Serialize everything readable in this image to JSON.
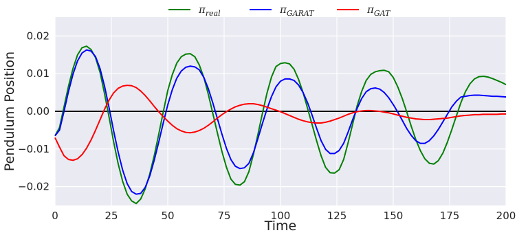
{
  "chart_data": {
    "type": "line",
    "xlabel": "Time",
    "ylabel": "Pendulum Position",
    "xlim": [
      0,
      200
    ],
    "ylim": [
      -0.025,
      0.025
    ],
    "x_ticks": [
      0,
      25,
      50,
      75,
      100,
      125,
      150,
      175,
      200
    ],
    "x_tick_labels": [
      "0",
      "25",
      "50",
      "75",
      "100",
      "125",
      "150",
      "175",
      "200"
    ],
    "y_ticks": [
      -0.02,
      -0.01,
      0.0,
      0.01,
      0.02
    ],
    "y_tick_labels": [
      "−0.02",
      "−0.01",
      "0.00",
      "0.01",
      "0.02"
    ],
    "grid": true,
    "legend_position": "top-center",
    "background_color": "#eaeaf2",
    "zero_line": {
      "y": 0.0,
      "color": "#000000"
    },
    "series": [
      {
        "name": "π",
        "subscript": "real",
        "color": "#008000",
        "x": [
          0,
          2,
          4,
          6,
          8,
          10,
          12,
          14,
          16,
          18,
          20,
          22,
          24,
          26,
          28,
          30,
          32,
          34,
          36,
          38,
          40,
          42,
          44,
          46,
          48,
          50,
          52,
          54,
          56,
          58,
          60,
          62,
          64,
          66,
          68,
          70,
          72,
          74,
          76,
          78,
          80,
          82,
          84,
          86,
          88,
          90,
          92,
          94,
          96,
          98,
          100,
          102,
          104,
          106,
          108,
          110,
          112,
          114,
          116,
          118,
          120,
          122,
          124,
          126,
          128,
          130,
          132,
          134,
          136,
          138,
          140,
          142,
          144,
          146,
          148,
          150,
          152,
          154,
          156,
          158,
          160,
          162,
          164,
          166,
          168,
          170,
          172,
          174,
          176,
          178,
          180,
          182,
          184,
          186,
          188,
          190,
          192,
          194,
          196,
          198,
          200
        ],
        "values": [
          -0.0065,
          -0.0043,
          0.0012,
          0.0067,
          0.0114,
          0.015,
          0.0169,
          0.0173,
          0.0164,
          0.0142,
          0.0103,
          0.0046,
          -0.0016,
          -0.0081,
          -0.0139,
          -0.0186,
          -0.022,
          -0.0238,
          -0.0245,
          -0.0233,
          -0.0206,
          -0.0167,
          -0.0118,
          -0.0061,
          -0.0002,
          0.0055,
          0.0097,
          0.0128,
          0.0145,
          0.0152,
          0.0153,
          0.0145,
          0.0123,
          0.009,
          0.0045,
          -0.0006,
          -0.0057,
          -0.0106,
          -0.0148,
          -0.018,
          -0.0194,
          -0.0196,
          -0.0187,
          -0.016,
          -0.0114,
          -0.0061,
          -0.0005,
          0.0048,
          0.0091,
          0.0119,
          0.0127,
          0.0129,
          0.0126,
          0.0112,
          0.0085,
          0.005,
          0.0008,
          -0.0035,
          -0.0078,
          -0.0118,
          -0.0149,
          -0.0163,
          -0.0164,
          -0.0155,
          -0.0128,
          -0.0083,
          -0.0034,
          0.0015,
          0.0053,
          0.0082,
          0.0098,
          0.0105,
          0.0108,
          0.0109,
          0.0105,
          0.009,
          0.0065,
          0.0034,
          -0.0002,
          -0.004,
          -0.0075,
          -0.0104,
          -0.0126,
          -0.0138,
          -0.014,
          -0.0131,
          -0.0111,
          -0.0082,
          -0.0048,
          -0.0012,
          0.0023,
          0.0052,
          0.0073,
          0.0086,
          0.0092,
          0.0093,
          0.0091,
          0.0087,
          0.0082,
          0.0077,
          0.0071
        ]
      },
      {
        "name": "π",
        "subscript": "GARAT",
        "color": "#0000ff",
        "x": [
          0,
          2,
          4,
          6,
          8,
          10,
          12,
          14,
          16,
          18,
          20,
          22,
          24,
          26,
          28,
          30,
          32,
          34,
          36,
          38,
          40,
          42,
          44,
          46,
          48,
          50,
          52,
          54,
          56,
          58,
          60,
          62,
          64,
          66,
          68,
          70,
          72,
          74,
          76,
          78,
          80,
          82,
          84,
          86,
          88,
          90,
          92,
          94,
          96,
          98,
          100,
          102,
          104,
          106,
          108,
          110,
          112,
          114,
          116,
          118,
          120,
          122,
          124,
          126,
          128,
          130,
          132,
          134,
          136,
          138,
          140,
          142,
          144,
          146,
          148,
          150,
          152,
          154,
          156,
          158,
          160,
          162,
          164,
          166,
          168,
          170,
          172,
          174,
          176,
          178,
          180,
          182,
          184,
          186,
          188,
          190,
          192,
          194,
          196,
          198,
          200
        ],
        "values": [
          -0.0065,
          -0.005,
          0.0,
          0.0053,
          0.0099,
          0.0134,
          0.0155,
          0.0163,
          0.016,
          0.0145,
          0.0113,
          0.0066,
          0.0009,
          -0.0052,
          -0.0108,
          -0.0156,
          -0.0192,
          -0.0213,
          -0.022,
          -0.0218,
          -0.0202,
          -0.0172,
          -0.013,
          -0.0082,
          -0.0031,
          0.0017,
          0.0057,
          0.0088,
          0.0107,
          0.0117,
          0.012,
          0.0118,
          0.011,
          0.009,
          0.006,
          0.0022,
          -0.0019,
          -0.006,
          -0.0098,
          -0.0128,
          -0.0146,
          -0.0152,
          -0.015,
          -0.0138,
          -0.011,
          -0.0072,
          -0.0032,
          0.0006,
          0.0039,
          0.0065,
          0.008,
          0.0086,
          0.0086,
          0.0082,
          0.007,
          0.005,
          0.0023,
          -0.001,
          -0.0045,
          -0.0078,
          -0.0101,
          -0.0112,
          -0.0112,
          -0.0104,
          -0.0085,
          -0.0055,
          -0.0022,
          0.0008,
          0.0034,
          0.0052,
          0.006,
          0.0062,
          0.0059,
          0.005,
          0.0036,
          0.0018,
          -0.0002,
          -0.0024,
          -0.0046,
          -0.0064,
          -0.0078,
          -0.0085,
          -0.0085,
          -0.0078,
          -0.0065,
          -0.0048,
          -0.0028,
          -0.0008,
          0.0012,
          0.0027,
          0.0038,
          0.004,
          0.0042,
          0.0043,
          0.0043,
          0.0042,
          0.0041,
          0.004,
          0.004,
          0.0039,
          0.0038
        ]
      },
      {
        "name": "π",
        "subscript": "GAT",
        "color": "#ff0000",
        "x": [
          0,
          2,
          4,
          6,
          8,
          10,
          12,
          14,
          16,
          18,
          20,
          22,
          24,
          26,
          28,
          30,
          32,
          34,
          36,
          38,
          40,
          42,
          44,
          46,
          48,
          50,
          52,
          54,
          56,
          58,
          60,
          62,
          64,
          66,
          68,
          70,
          72,
          74,
          76,
          78,
          80,
          82,
          84,
          86,
          88,
          90,
          92,
          94,
          96,
          98,
          100,
          102,
          104,
          106,
          108,
          110,
          112,
          114,
          116,
          118,
          120,
          122,
          124,
          126,
          128,
          130,
          132,
          134,
          136,
          138,
          140,
          142,
          144,
          146,
          148,
          150,
          152,
          154,
          156,
          158,
          160,
          162,
          164,
          166,
          168,
          170,
          172,
          174,
          176,
          178,
          180,
          182,
          184,
          186,
          188,
          190,
          192,
          194,
          196,
          198,
          200
        ],
        "values": [
          -0.007,
          -0.0095,
          -0.0118,
          -0.0128,
          -0.013,
          -0.0126,
          -0.0115,
          -0.0098,
          -0.0076,
          -0.005,
          -0.0022,
          0.0006,
          0.003,
          0.0049,
          0.0061,
          0.0067,
          0.0069,
          0.0068,
          0.0063,
          0.0054,
          0.0042,
          0.0028,
          0.0013,
          -0.0001,
          -0.0014,
          -0.0026,
          -0.0037,
          -0.0046,
          -0.0052,
          -0.0056,
          -0.0057,
          -0.0055,
          -0.0051,
          -0.0045,
          -0.0037,
          -0.0028,
          -0.0018,
          -0.0009,
          -0.0001,
          0.0006,
          0.0012,
          0.0016,
          0.0019,
          0.002,
          0.002,
          0.0018,
          0.0015,
          0.0011,
          0.0007,
          0.0003,
          -0.0001,
          -0.0006,
          -0.0011,
          -0.0016,
          -0.0021,
          -0.0025,
          -0.0028,
          -0.003,
          -0.0031,
          -0.0031,
          -0.0029,
          -0.0026,
          -0.0022,
          -0.0018,
          -0.0013,
          -0.0008,
          -0.0004,
          -0.0001,
          0.0001,
          0.0002,
          0.0002,
          0.0001,
          0.0,
          -0.0002,
          -0.0004,
          -0.0007,
          -0.001,
          -0.0013,
          -0.0016,
          -0.0018,
          -0.002,
          -0.0021,
          -0.0022,
          -0.0022,
          -0.0021,
          -0.002,
          -0.0019,
          -0.0018,
          -0.0016,
          -0.0014,
          -0.0012,
          -0.0011,
          -0.001,
          -0.0009,
          -0.0009,
          -0.0008,
          -0.0008,
          -0.0008,
          -0.0008,
          -0.0007,
          -0.0007
        ]
      }
    ]
  }
}
